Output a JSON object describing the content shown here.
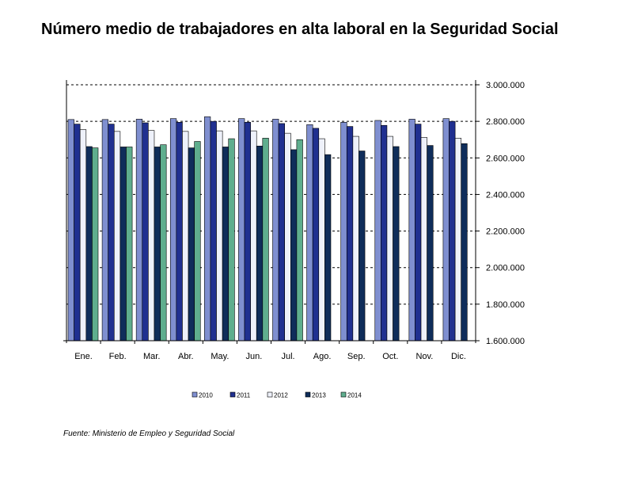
{
  "chart_data": {
    "type": "bar",
    "title": "Número medio de trabajadores en alta laboral en la Seguridad Social",
    "source": "Fuente: Ministerio de Empleo y Seguridad Social",
    "categories": [
      "Ene.",
      "Feb.",
      "Mar.",
      "Abr.",
      "May.",
      "Jun.",
      "Jul.",
      "Ago.",
      "Sep.",
      "Oct.",
      "Nov.",
      "Dic."
    ],
    "ylim": [
      1600000,
      3000000
    ],
    "yticks": [
      1600000,
      1800000,
      2000000,
      2200000,
      2400000,
      2600000,
      2800000,
      3000000
    ],
    "ytick_labels": [
      "1.600.000",
      "1.800.000",
      "2.000.000",
      "2.200.000",
      "2.400.000",
      "2.600.000",
      "2.800.000",
      "3.000.000"
    ],
    "grid": "dashed horizontal",
    "y_axis_side": "right",
    "legend_position": "bottom",
    "series": [
      {
        "name": "2010",
        "color": "#7f8fd0",
        "values": [
          2810000,
          2810000,
          2812000,
          2815000,
          2825000,
          2815000,
          2812000,
          2782000,
          2795000,
          2805000,
          2812000,
          2815000
        ]
      },
      {
        "name": "2011",
        "color": "#203090",
        "values": [
          2785000,
          2785000,
          2792000,
          2795000,
          2800000,
          2795000,
          2788000,
          2762000,
          2772000,
          2778000,
          2785000,
          2800000
        ]
      },
      {
        "name": "2012",
        "color": "#eef1fa",
        "values": [
          2755000,
          2745000,
          2750000,
          2745000,
          2748000,
          2748000,
          2735000,
          2705000,
          2718000,
          2718000,
          2712000,
          2708000
        ]
      },
      {
        "name": "2013",
        "color": "#0f2d5a",
        "values": [
          2662000,
          2660000,
          2660000,
          2655000,
          2660000,
          2665000,
          2645000,
          2618000,
          2638000,
          2662000,
          2668000,
          2678000
        ]
      },
      {
        "name": "2014",
        "color": "#5fae8e",
        "values": [
          2655000,
          2660000,
          2672000,
          2690000,
          2705000,
          2708000,
          2700000,
          null,
          null,
          null,
          null,
          null
        ]
      }
    ]
  }
}
